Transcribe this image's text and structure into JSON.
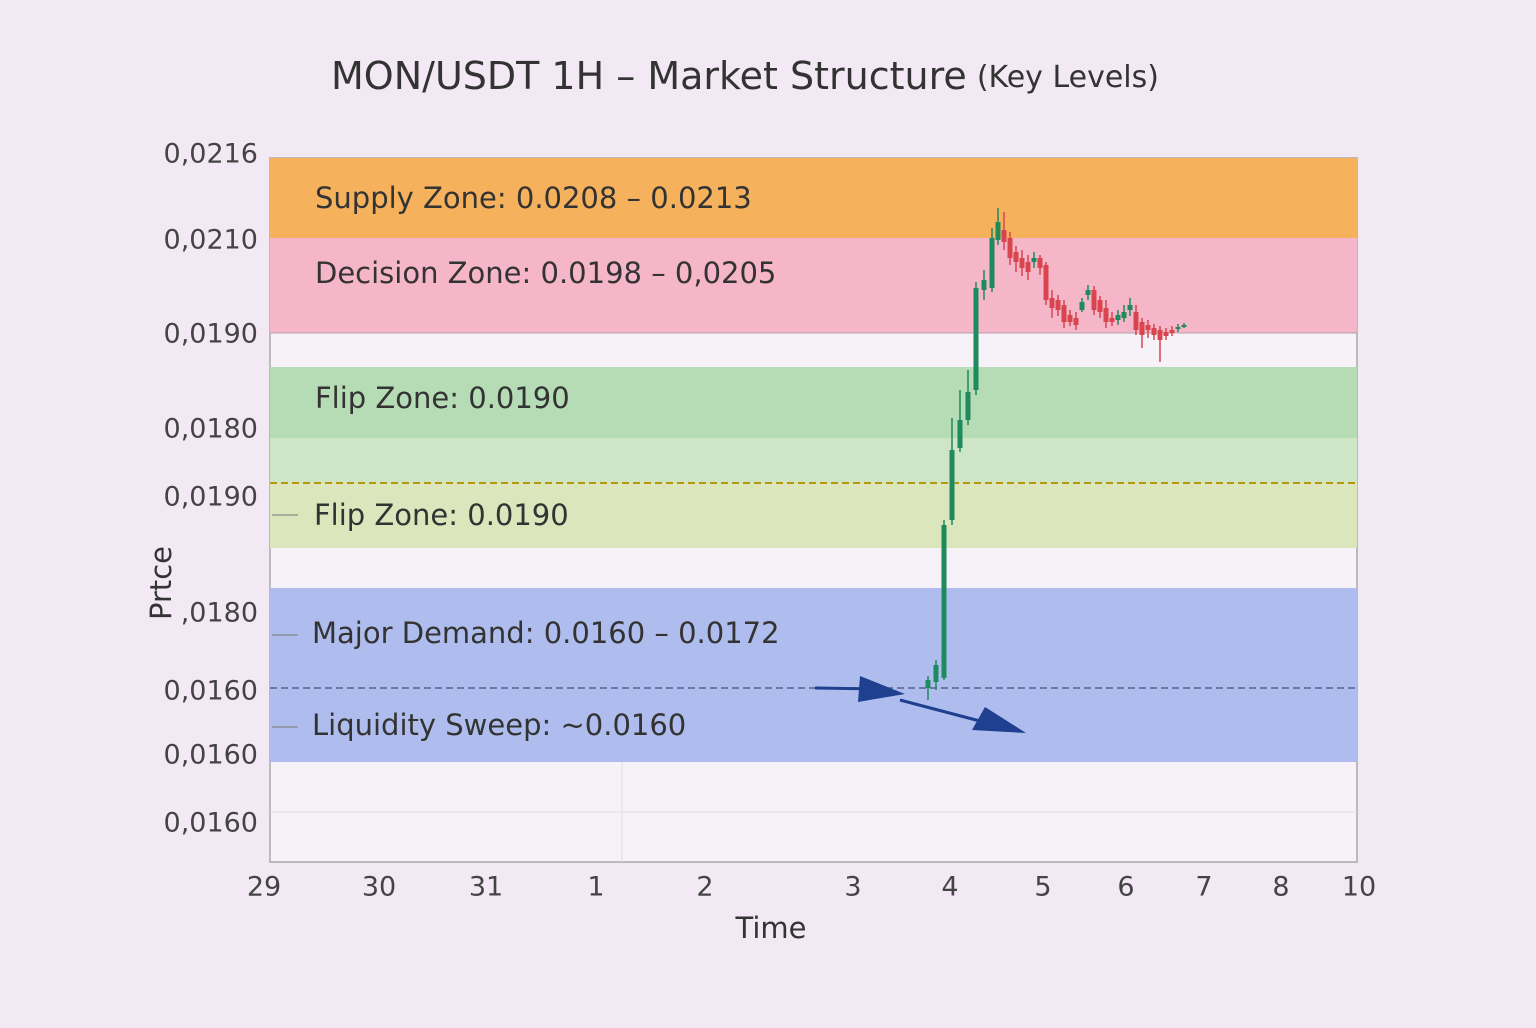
{
  "title": "MON/USDT 1H – Market Structure",
  "title_suffix": "(Key Levels)",
  "y_axis_label": "Prtce",
  "x_axis_label": "Time",
  "y_tick_labels": [
    "0,0216",
    "0,0210",
    "0,0190",
    "0,0180",
    "0,0190",
    ",0180",
    "0,0160",
    "0,0160",
    "0,0160"
  ],
  "x_tick_labels": [
    "29",
    "30",
    "31",
    "1",
    "2",
    "3",
    "4",
    "5",
    "6",
    "7",
    "8",
    "10"
  ],
  "zones": [
    {
      "label": "Supply Zone: 0.0208 – 0.0213"
    },
    {
      "label": "Decision Zone: 0.0198 – 0,0205"
    },
    {
      "label": "Flip Zone: 0.0190"
    },
    {
      "label": "Flip Zone: 0.0190"
    },
    {
      "label": "Major Demand: 0.0160 – 0.0172"
    },
    {
      "label": "Liquidity Sweep: ~0.0160"
    }
  ]
}
